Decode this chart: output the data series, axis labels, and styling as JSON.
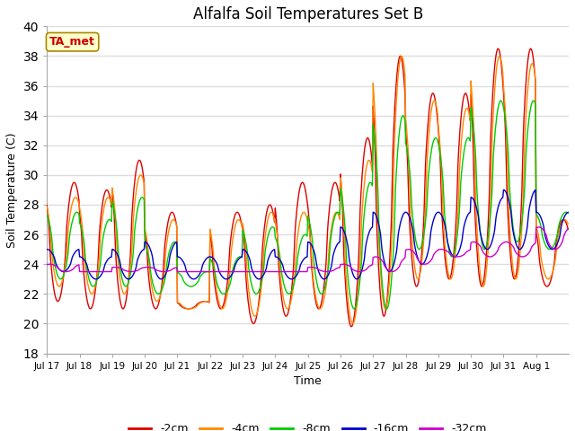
{
  "title": "Alfalfa Soil Temperatures Set B",
  "xlabel": "Time",
  "ylabel": "Soil Temperature (C)",
  "ylim": [
    18,
    40
  ],
  "yticks": [
    18,
    20,
    22,
    24,
    26,
    28,
    30,
    32,
    34,
    36,
    38,
    40
  ],
  "background_color": "#ffffff",
  "plot_bg_color": "#ffffff",
  "grid_color": "#dddddd",
  "title_fontsize": 12,
  "label_annotation": "TA_met",
  "annotation_color": "#cc0000",
  "annotation_bg": "#ffffcc",
  "line_colors": {
    "-2cm": "#dd0000",
    "-4cm": "#ff8800",
    "-8cm": "#00cc00",
    "-16cm": "#0000cc",
    "-32cm": "#cc00cc"
  },
  "tick_labels": [
    "Jul 17",
    "Jul 18",
    "Jul 19",
    "Jul 20",
    "Jul 21",
    "Jul 22",
    "Jul 23",
    "Jul 24",
    "Jul 25",
    "Jul 26",
    "Jul 27",
    "Jul 28",
    "Jul 29",
    "Jul 30",
    "Jul 31",
    "Aug 1"
  ],
  "legend_labels": [
    "-2cm",
    "-4cm",
    "-8cm",
    "-16cm",
    "-32cm"
  ],
  "n_days": 16,
  "pts_per_day": 48,
  "peak_hour_2cm": 14,
  "peak_hour_4cm": 15,
  "peak_hour_8cm": 16,
  "peak_hour_16cm": 18,
  "peak_hour_32cm": 20,
  "mins_2cm": [
    21.5,
    21.0,
    21.0,
    21.0,
    21.0,
    21.0,
    20.0,
    20.5,
    21.0,
    19.8,
    20.5,
    22.5,
    23.0,
    22.5,
    23.0,
    22.5
  ],
  "maxs_2cm": [
    29.5,
    29.0,
    31.0,
    27.5,
    21.5,
    27.5,
    28.0,
    29.5,
    29.5,
    32.5,
    38.0,
    35.5,
    35.5,
    38.5,
    38.5,
    27.0
  ],
  "mins_4cm": [
    22.5,
    22.0,
    22.0,
    21.5,
    21.0,
    21.0,
    20.5,
    21.0,
    21.0,
    20.0,
    21.0,
    23.0,
    23.0,
    22.5,
    23.0,
    23.0
  ],
  "maxs_4cm": [
    28.5,
    28.5,
    30.0,
    27.0,
    21.5,
    27.0,
    27.5,
    27.5,
    27.5,
    31.0,
    38.0,
    35.0,
    34.5,
    38.0,
    37.5,
    27.0
  ],
  "mins_8cm": [
    23.0,
    22.5,
    22.5,
    22.0,
    22.5,
    22.0,
    22.0,
    22.0,
    22.0,
    21.0,
    21.0,
    25.0,
    24.5,
    25.0,
    25.5,
    25.0
  ],
  "maxs_8cm": [
    27.5,
    27.0,
    28.5,
    25.5,
    23.5,
    24.5,
    26.5,
    26.0,
    27.5,
    29.5,
    34.0,
    32.5,
    32.5,
    35.0,
    35.0,
    27.5
  ],
  "mins_16cm": [
    23.5,
    23.0,
    23.0,
    23.0,
    23.0,
    23.0,
    23.0,
    23.0,
    23.0,
    23.0,
    23.5,
    24.0,
    24.5,
    25.0,
    25.0,
    25.0
  ],
  "maxs_16cm": [
    25.0,
    24.5,
    25.0,
    25.5,
    24.5,
    24.5,
    25.0,
    24.5,
    25.5,
    26.5,
    27.5,
    27.5,
    27.5,
    28.5,
    29.0,
    27.5
  ],
  "mins_32cm": [
    23.5,
    23.5,
    23.5,
    23.5,
    23.5,
    23.5,
    23.5,
    23.5,
    23.5,
    23.5,
    23.5,
    24.0,
    24.5,
    24.5,
    24.5,
    25.0
  ],
  "maxs_32cm": [
    24.0,
    23.5,
    23.8,
    23.8,
    23.5,
    23.5,
    23.5,
    23.5,
    23.8,
    24.0,
    24.5,
    25.0,
    25.0,
    25.5,
    25.5,
    26.5
  ]
}
